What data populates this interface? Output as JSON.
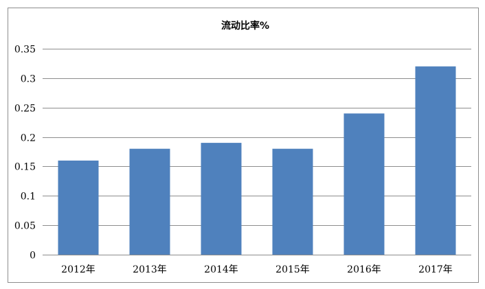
{
  "chart_data": {
    "type": "bar",
    "title": "流动比率%",
    "categories": [
      "2012年",
      "2013年",
      "2014年",
      "2015年",
      "2016年",
      "2017年"
    ],
    "series": [
      {
        "values": [
          0.16,
          0.18,
          0.19,
          0.18,
          0.24,
          0.32
        ],
        "color": "#4f81bd"
      }
    ],
    "ylim": [
      0,
      0.35
    ],
    "y_ticks": [
      0,
      0.05,
      0.1,
      0.15,
      0.2,
      0.25,
      0.3,
      0.35
    ],
    "y_tick_labels": [
      "0",
      "0.05",
      "0.1",
      "0.15",
      "0.2",
      "0.25",
      "0.3",
      "0.35"
    ],
    "grid": true,
    "legend": "none",
    "xlabel": "",
    "ylabel": ""
  }
}
